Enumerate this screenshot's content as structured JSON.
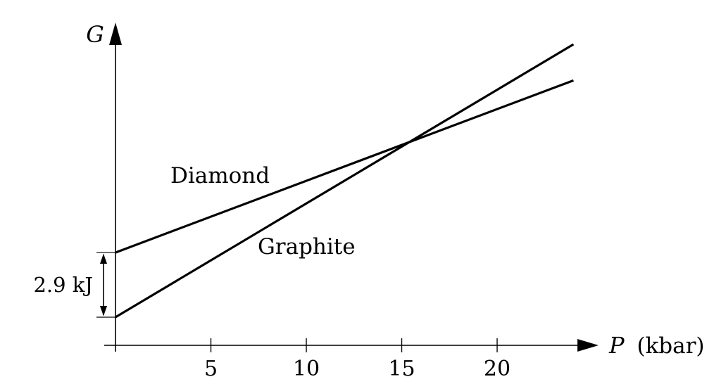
{
  "chart_data": {
    "type": "line",
    "title": "",
    "xlabel": {
      "var": "P",
      "unit": "(kbar)"
    },
    "ylabel": "G",
    "x_ticks": [
      5,
      10,
      15,
      20
    ],
    "xlim": [
      0,
      24
    ],
    "y_ticks_shown": false,
    "grid": false,
    "legend": "none",
    "series": [
      {
        "name": "Diamond",
        "x": [
          0,
          24
        ],
        "y": [
          2.9,
          10.62
        ]
      },
      {
        "name": "Graphite",
        "x": [
          0,
          24
        ],
        "y": [
          0,
          12.24
        ]
      }
    ],
    "annotations": [
      {
        "type": "gap-arrow",
        "label": "2.9 kJ",
        "at_x": 0,
        "y_from": 0,
        "y_to": 2.9
      }
    ]
  }
}
